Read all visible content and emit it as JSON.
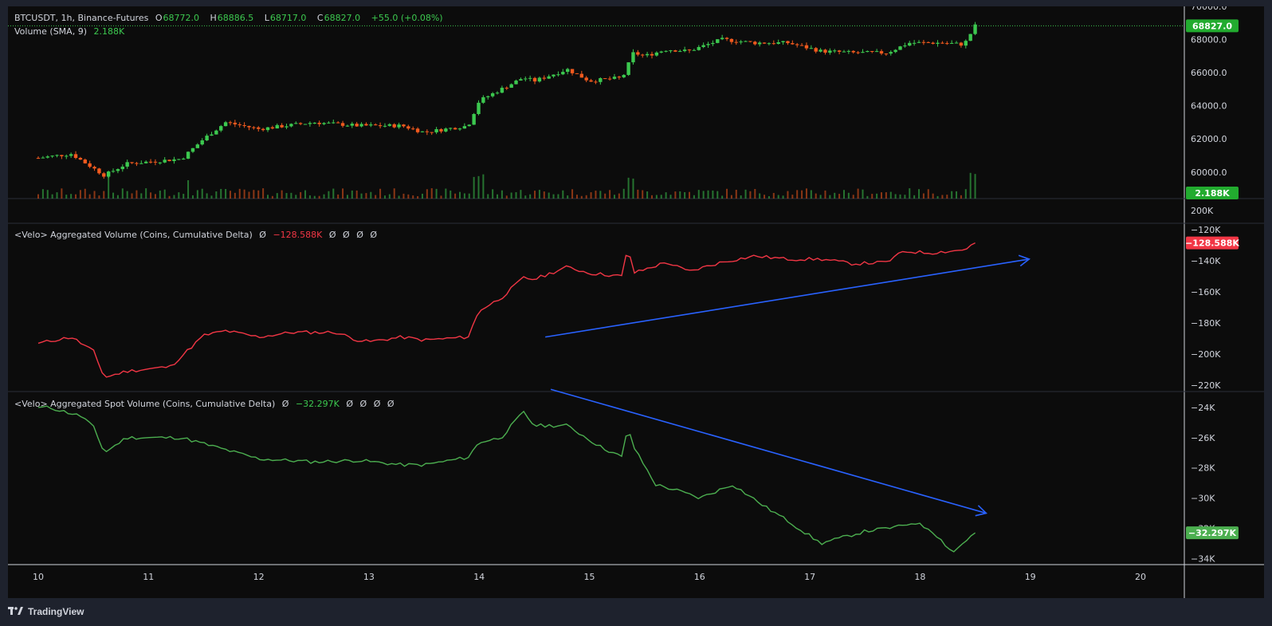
{
  "header": {
    "symbol": "BTCUSDT, 1h, Binance-Futures",
    "ohlc": [
      {
        "k": "O",
        "v": "68772.0"
      },
      {
        "k": "H",
        "v": "68886.5"
      },
      {
        "k": "L",
        "v": "68717.0"
      },
      {
        "k": "C",
        "v": "68827.0"
      }
    ],
    "change": "+55.0 (+0.08%)",
    "volume_label": "Volume (SMA, 9)",
    "volume_value": "2.188K"
  },
  "pane2_legend": {
    "title": "<Velo> Aggregated Volume (Coins, Cumulative Delta)",
    "symbol": "Ø",
    "value": "−128.588K",
    "extra": [
      "Ø",
      "Ø",
      "Ø",
      "Ø"
    ]
  },
  "pane3_legend": {
    "title": "<Velo> Aggregated Spot Volume (Coins, Cumulative Delta)",
    "symbol": "Ø",
    "value": "−32.297K",
    "extra": [
      "Ø",
      "Ø",
      "Ø",
      "Ø"
    ]
  },
  "footer": {
    "brand": "TradingView"
  },
  "colors": {
    "up": "#3cc84f",
    "down": "#f25a1e",
    "delta_line": "#f23645",
    "spot_line": "#4caf50",
    "arrow": "#2962ff",
    "background": "#0c0c0c"
  },
  "chart_data": [
    {
      "type": "candlestick",
      "title": "BTCUSDT, 1h, Binance-Futures",
      "price_ticks": [
        70000,
        68000,
        66000,
        64000,
        62000,
        60000
      ],
      "price_tick_labels": [
        "70000.0",
        "68000.0",
        "66000.0",
        "64000.0",
        "62000.0",
        "60000.0"
      ],
      "ylim": [
        58400,
        70000
      ],
      "last_price": 68827.0,
      "last_price_label": "68827.0",
      "volume_badge": "2.188K",
      "close_path": [
        {
          "x": 10.0,
          "y": 60850
        },
        {
          "x": 10.3,
          "y": 61100
        },
        {
          "x": 10.6,
          "y": 59800
        },
        {
          "x": 10.8,
          "y": 60500
        },
        {
          "x": 11.3,
          "y": 60800
        },
        {
          "x": 11.5,
          "y": 62000
        },
        {
          "x": 11.7,
          "y": 63000
        },
        {
          "x": 12.0,
          "y": 62600
        },
        {
          "x": 12.5,
          "y": 63000
        },
        {
          "x": 12.9,
          "y": 62800
        },
        {
          "x": 13.3,
          "y": 62800
        },
        {
          "x": 13.5,
          "y": 62400
        },
        {
          "x": 13.9,
          "y": 62800
        },
        {
          "x": 14.0,
          "y": 64300
        },
        {
          "x": 14.4,
          "y": 65700
        },
        {
          "x": 14.5,
          "y": 65500
        },
        {
          "x": 14.8,
          "y": 66200
        },
        {
          "x": 15.0,
          "y": 65500
        },
        {
          "x": 15.3,
          "y": 65700
        },
        {
          "x": 15.4,
          "y": 67200
        },
        {
          "x": 15.5,
          "y": 67000
        },
        {
          "x": 15.7,
          "y": 67400
        },
        {
          "x": 15.9,
          "y": 67300
        },
        {
          "x": 16.2,
          "y": 68000
        },
        {
          "x": 16.5,
          "y": 67800
        },
        {
          "x": 16.8,
          "y": 67800
        },
        {
          "x": 17.1,
          "y": 67300
        },
        {
          "x": 17.4,
          "y": 67200
        },
        {
          "x": 17.7,
          "y": 67200
        },
        {
          "x": 17.9,
          "y": 67800
        },
        {
          "x": 18.2,
          "y": 67800
        },
        {
          "x": 18.4,
          "y": 67700
        },
        {
          "x": 18.5,
          "y": 68827
        }
      ]
    },
    {
      "type": "line",
      "title": "<Velo> Aggregated Volume (Coins, Cumulative Delta)",
      "ticks": [
        -120,
        -140,
        -160,
        -180,
        -200,
        -220
      ],
      "tick_labels": [
        "−120K",
        "−140K",
        "−160K",
        "−180K",
        "−200K",
        "−220K"
      ],
      "ylim": [
        -224000,
        -116000
      ],
      "last_label": "−128.588K",
      "x": [
        10.0,
        10.3,
        10.5,
        10.6,
        10.8,
        11.2,
        11.5,
        11.7,
        12.0,
        12.3,
        12.7,
        12.9,
        13.0,
        13.3,
        13.5,
        13.9,
        14.0,
        14.2,
        14.4,
        14.5,
        14.8,
        15.0,
        15.3,
        15.35,
        15.4,
        15.7,
        15.9,
        16.2,
        16.5,
        16.8,
        17.1,
        17.4,
        17.7,
        17.85,
        18.1,
        18.4,
        18.5
      ],
      "y": [
        -193000,
        -189000,
        -198000,
        -215000,
        -211000,
        -208000,
        -188000,
        -185000,
        -189000,
        -186000,
        -186000,
        -191000,
        -192000,
        -189000,
        -191000,
        -189000,
        -172000,
        -164000,
        -151000,
        -152000,
        -144000,
        -148000,
        -150000,
        -130000,
        -148000,
        -141000,
        -147000,
        -141000,
        -137000,
        -139000,
        -139000,
        -142000,
        -141000,
        -134000,
        -135000,
        -133000,
        -128588
      ],
      "trend_arrow": {
        "x": [
          14.6,
          18.99
        ],
        "y": [
          -189000,
          -139000
        ]
      }
    },
    {
      "type": "line",
      "title": "<Velo> Aggregated Spot Volume (Coins, Cumulative Delta)",
      "ticks": [
        -24,
        -26,
        -28,
        -30,
        -32,
        -34
      ],
      "tick_labels": [
        "−24K",
        "−26K",
        "−28K",
        "−30K",
        "−32K",
        "−34K"
      ],
      "ylim": [
        -34400,
        -23000
      ],
      "last_label": "−32.297K",
      "x": [
        10.0,
        10.1,
        10.4,
        10.5,
        10.6,
        10.8,
        11.3,
        11.5,
        11.8,
        12.0,
        12.5,
        12.9,
        13.3,
        13.5,
        13.9,
        14.0,
        14.2,
        14.4,
        14.5,
        14.8,
        15.1,
        15.3,
        15.35,
        15.4,
        15.6,
        15.8,
        16.0,
        16.2,
        16.3,
        16.6,
        16.8,
        17.1,
        17.3,
        17.5,
        17.8,
        17.95,
        18.1,
        18.3,
        18.4,
        18.5
      ],
      "y": [
        -24000,
        -24000,
        -24600,
        -25300,
        -27000,
        -26000,
        -26000,
        -26400,
        -27000,
        -27400,
        -27600,
        -27500,
        -27800,
        -27800,
        -27300,
        -26300,
        -26000,
        -24300,
        -25200,
        -25200,
        -26600,
        -27300,
        -25200,
        -26600,
        -29100,
        -29500,
        -30000,
        -29400,
        -29100,
        -30600,
        -31500,
        -33000,
        -32600,
        -32200,
        -31900,
        -31600,
        -32100,
        -33600,
        -32900,
        -32297
      ],
      "trend_arrow": {
        "x": [
          14.65,
          18.6
        ],
        "y": [
          -22800,
          -31000
        ]
      }
    }
  ],
  "time_axis": {
    "ticks": [
      10,
      11,
      12,
      13,
      14,
      15,
      16,
      17,
      18,
      19,
      20
    ],
    "labels": [
      "10",
      "11",
      "12",
      "13",
      "14",
      "15",
      "16",
      "17",
      "18",
      "19",
      "20"
    ]
  },
  "extra_axis_label": "200K"
}
